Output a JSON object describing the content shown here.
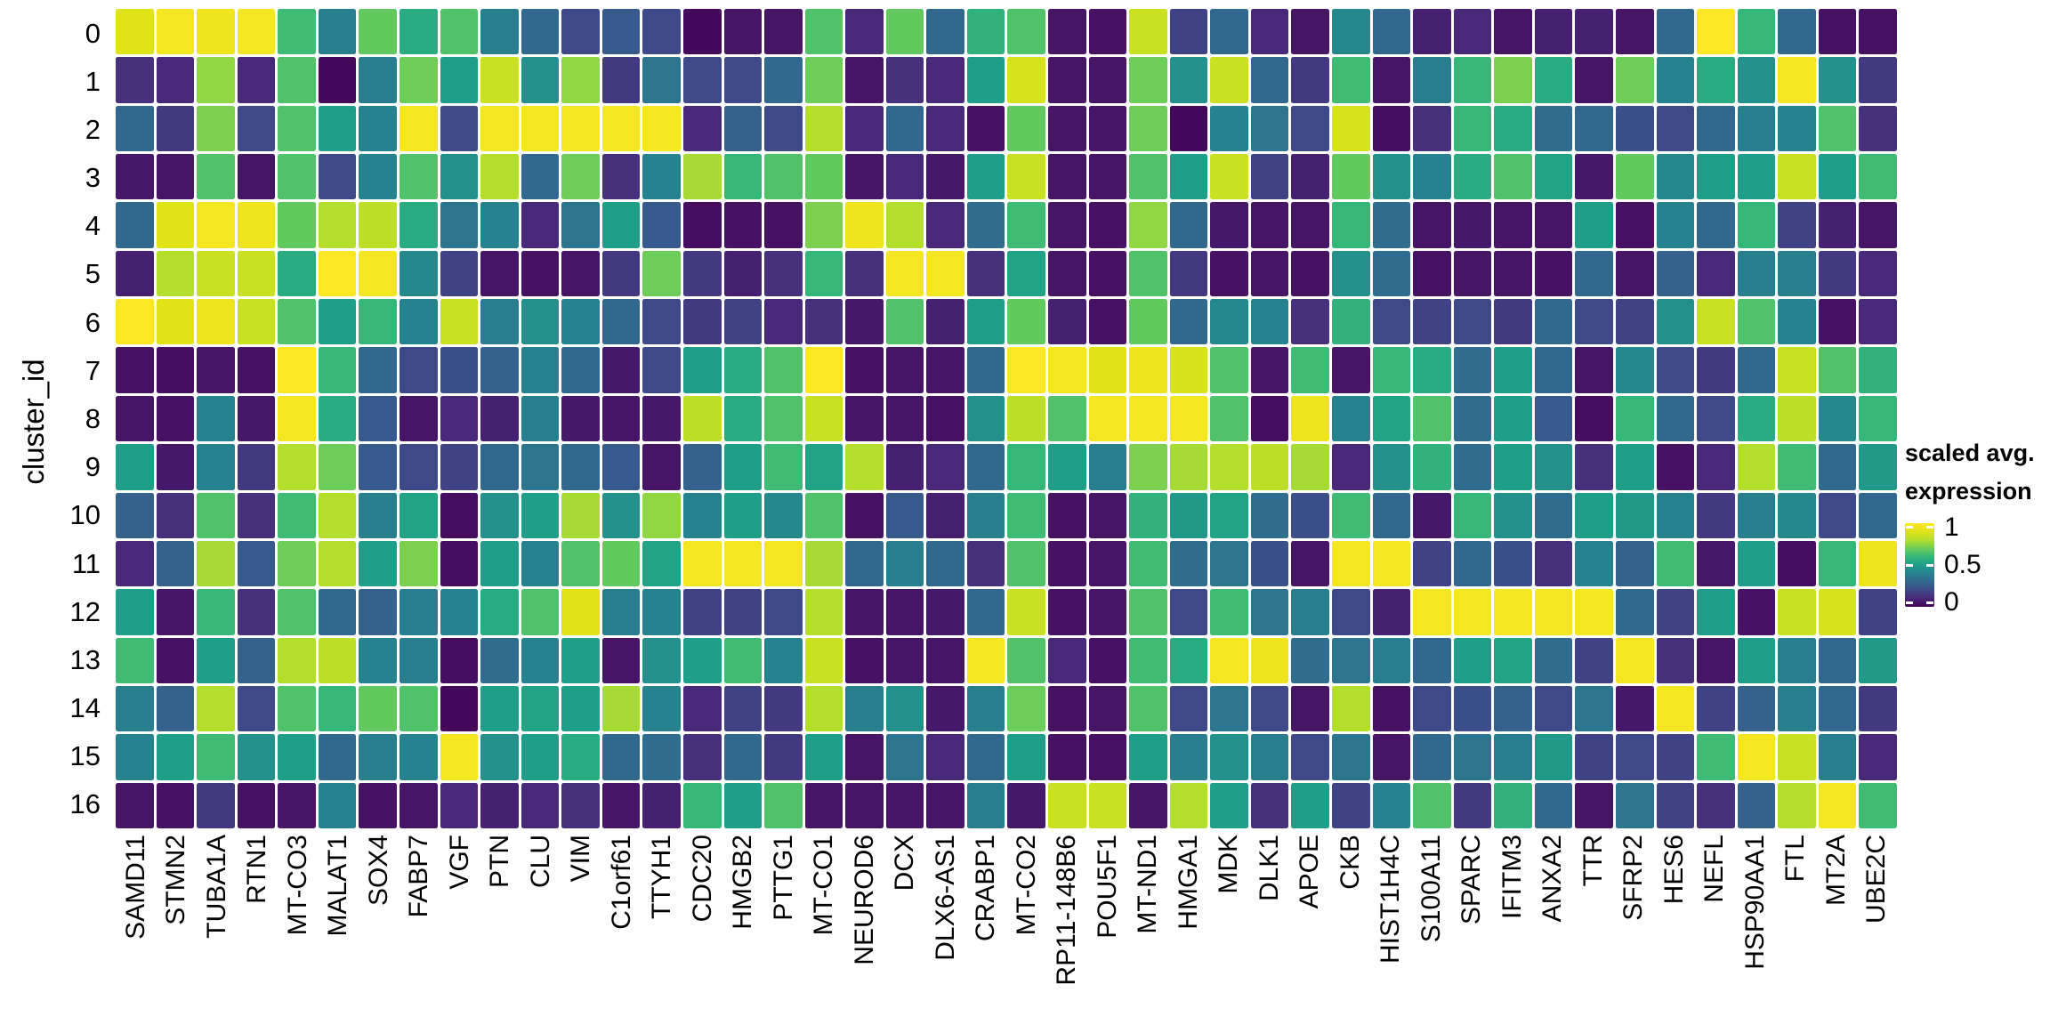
{
  "chart_data": {
    "type": "heatmap",
    "title": "",
    "xlabel": "",
    "ylabel": "cluster_id",
    "colormap": "viridis",
    "grid": "off",
    "legend_position": "right",
    "rows": [
      "0",
      "1",
      "2",
      "3",
      "4",
      "5",
      "6",
      "7",
      "8",
      "9",
      "10",
      "11",
      "12",
      "13",
      "14",
      "15",
      "16"
    ],
    "columns": [
      "SAMD11",
      "STMN2",
      "TUBA1A",
      "RTN1",
      "MT-CO3",
      "MALAT1",
      "SOX4",
      "FABP7",
      "VGF",
      "PTN",
      "CLU",
      "VIM",
      "C1orf61",
      "TTYH1",
      "CDC20",
      "HMGB2",
      "PTTG1",
      "MT-CO1",
      "NEUROD6",
      "DCX",
      "DLX6-AS1",
      "CRABP1",
      "MT-CO2",
      "RP11-148B6",
      "POU5F1",
      "MT-ND1",
      "HMGA1",
      "MDK",
      "DLK1",
      "APOE",
      "CKB",
      "HIST1H4C",
      "S100A11",
      "SPARC",
      "IFITM3",
      "ANXA2",
      "TTR",
      "SFRP2",
      "HES6",
      "NEFL",
      "HSP90AA1",
      "FTL",
      "MT2A",
      "UBE2C"
    ],
    "values": [
      [
        0.9,
        0.97,
        0.95,
        0.97,
        0.62,
        0.38,
        0.68,
        0.55,
        0.65,
        0.38,
        0.3,
        0.2,
        0.25,
        0.2,
        0.02,
        0.05,
        0.05,
        0.65,
        0.1,
        0.68,
        0.3,
        0.58,
        0.65,
        0.05,
        0.04,
        0.85,
        0.18,
        0.3,
        0.1,
        0.05,
        0.42,
        0.3,
        0.08,
        0.1,
        0.05,
        0.08,
        0.08,
        0.05,
        0.3,
        1.0,
        0.6,
        0.3,
        0.04,
        0.04
      ],
      [
        0.12,
        0.1,
        0.75,
        0.1,
        0.65,
        0.02,
        0.38,
        0.7,
        0.5,
        0.85,
        0.45,
        0.75,
        0.15,
        0.35,
        0.2,
        0.2,
        0.3,
        0.7,
        0.05,
        0.12,
        0.1,
        0.5,
        0.88,
        0.05,
        0.05,
        0.7,
        0.45,
        0.85,
        0.3,
        0.15,
        0.62,
        0.05,
        0.38,
        0.6,
        0.72,
        0.55,
        0.05,
        0.7,
        0.4,
        0.55,
        0.45,
        0.97,
        0.45,
        0.15
      ],
      [
        0.3,
        0.15,
        0.72,
        0.2,
        0.65,
        0.5,
        0.4,
        0.97,
        0.2,
        0.97,
        0.97,
        0.97,
        0.97,
        0.97,
        0.1,
        0.28,
        0.2,
        0.8,
        0.1,
        0.3,
        0.1,
        0.04,
        0.68,
        0.05,
        0.05,
        0.7,
        0.02,
        0.4,
        0.35,
        0.2,
        0.88,
        0.03,
        0.12,
        0.6,
        0.55,
        0.32,
        0.3,
        0.22,
        0.2,
        0.3,
        0.38,
        0.4,
        0.65,
        0.12
      ],
      [
        0.06,
        0.05,
        0.65,
        0.05,
        0.65,
        0.2,
        0.4,
        0.65,
        0.45,
        0.8,
        0.3,
        0.7,
        0.12,
        0.4,
        0.78,
        0.6,
        0.65,
        0.68,
        0.05,
        0.1,
        0.06,
        0.5,
        0.85,
        0.05,
        0.05,
        0.65,
        0.5,
        0.85,
        0.18,
        0.08,
        0.68,
        0.45,
        0.4,
        0.55,
        0.65,
        0.52,
        0.06,
        0.68,
        0.42,
        0.5,
        0.5,
        0.85,
        0.5,
        0.62
      ],
      [
        0.3,
        0.9,
        0.97,
        0.95,
        0.68,
        0.8,
        0.82,
        0.55,
        0.35,
        0.4,
        0.1,
        0.35,
        0.5,
        0.25,
        0.03,
        0.04,
        0.04,
        0.72,
        0.95,
        0.8,
        0.1,
        0.32,
        0.62,
        0.05,
        0.04,
        0.75,
        0.3,
        0.06,
        0.05,
        0.05,
        0.6,
        0.32,
        0.05,
        0.06,
        0.05,
        0.05,
        0.5,
        0.04,
        0.4,
        0.3,
        0.6,
        0.18,
        0.08,
        0.05
      ],
      [
        0.08,
        0.8,
        0.85,
        0.85,
        0.55,
        1.0,
        0.97,
        0.42,
        0.18,
        0.05,
        0.04,
        0.05,
        0.15,
        0.7,
        0.15,
        0.08,
        0.12,
        0.6,
        0.12,
        0.97,
        0.97,
        0.12,
        0.52,
        0.05,
        0.04,
        0.65,
        0.15,
        0.04,
        0.05,
        0.04,
        0.45,
        0.32,
        0.04,
        0.05,
        0.05,
        0.04,
        0.3,
        0.05,
        0.28,
        0.1,
        0.38,
        0.38,
        0.15,
        0.1
      ],
      [
        1.0,
        0.9,
        0.95,
        0.85,
        0.65,
        0.5,
        0.6,
        0.4,
        0.85,
        0.38,
        0.45,
        0.4,
        0.3,
        0.2,
        0.15,
        0.18,
        0.1,
        0.12,
        0.06,
        0.65,
        0.08,
        0.5,
        0.68,
        0.08,
        0.04,
        0.68,
        0.3,
        0.42,
        0.4,
        0.12,
        0.58,
        0.2,
        0.18,
        0.2,
        0.15,
        0.3,
        0.2,
        0.18,
        0.45,
        0.85,
        0.65,
        0.4,
        0.04,
        0.1
      ],
      [
        0.04,
        0.03,
        0.05,
        0.04,
        1.0,
        0.6,
        0.3,
        0.2,
        0.22,
        0.28,
        0.4,
        0.3,
        0.06,
        0.2,
        0.5,
        0.55,
        0.65,
        1.0,
        0.04,
        0.05,
        0.05,
        0.3,
        1.0,
        0.97,
        0.9,
        0.95,
        0.88,
        0.65,
        0.05,
        0.62,
        0.05,
        0.6,
        0.55,
        0.32,
        0.5,
        0.3,
        0.05,
        0.42,
        0.2,
        0.15,
        0.3,
        0.85,
        0.65,
        0.58
      ],
      [
        0.05,
        0.04,
        0.4,
        0.06,
        0.97,
        0.55,
        0.25,
        0.05,
        0.1,
        0.08,
        0.38,
        0.06,
        0.05,
        0.06,
        0.82,
        0.55,
        0.65,
        0.85,
        0.05,
        0.05,
        0.04,
        0.45,
        0.82,
        0.65,
        0.97,
        0.97,
        0.97,
        0.65,
        0.03,
        0.95,
        0.4,
        0.52,
        0.65,
        0.32,
        0.5,
        0.25,
        0.03,
        0.6,
        0.3,
        0.2,
        0.55,
        0.82,
        0.42,
        0.6
      ],
      [
        0.5,
        0.06,
        0.4,
        0.15,
        0.8,
        0.7,
        0.25,
        0.2,
        0.18,
        0.3,
        0.35,
        0.3,
        0.25,
        0.05,
        0.28,
        0.5,
        0.62,
        0.52,
        0.8,
        0.08,
        0.1,
        0.3,
        0.6,
        0.5,
        0.38,
        0.72,
        0.78,
        0.8,
        0.82,
        0.78,
        0.1,
        0.45,
        0.58,
        0.32,
        0.5,
        0.45,
        0.12,
        0.5,
        0.04,
        0.1,
        0.8,
        0.62,
        0.3,
        0.48
      ],
      [
        0.28,
        0.12,
        0.65,
        0.12,
        0.62,
        0.8,
        0.38,
        0.52,
        0.03,
        0.45,
        0.5,
        0.78,
        0.45,
        0.75,
        0.4,
        0.5,
        0.42,
        0.65,
        0.04,
        0.25,
        0.08,
        0.38,
        0.62,
        0.04,
        0.05,
        0.58,
        0.48,
        0.52,
        0.32,
        0.22,
        0.62,
        0.3,
        0.06,
        0.6,
        0.45,
        0.32,
        0.5,
        0.48,
        0.4,
        0.15,
        0.38,
        0.42,
        0.2,
        0.3
      ],
      [
        0.1,
        0.28,
        0.78,
        0.25,
        0.7,
        0.8,
        0.5,
        0.72,
        0.03,
        0.5,
        0.4,
        0.65,
        0.68,
        0.52,
        0.97,
        0.97,
        0.97,
        0.78,
        0.3,
        0.38,
        0.3,
        0.12,
        0.65,
        0.04,
        0.05,
        0.62,
        0.32,
        0.35,
        0.22,
        0.05,
        0.97,
        0.97,
        0.18,
        0.3,
        0.22,
        0.12,
        0.4,
        0.28,
        0.62,
        0.06,
        0.5,
        0.03,
        0.6,
        0.95
      ],
      [
        0.5,
        0.05,
        0.6,
        0.12,
        0.65,
        0.3,
        0.28,
        0.38,
        0.4,
        0.55,
        0.65,
        0.9,
        0.38,
        0.4,
        0.18,
        0.18,
        0.2,
        0.8,
        0.05,
        0.05,
        0.06,
        0.3,
        0.85,
        0.04,
        0.05,
        0.65,
        0.2,
        0.62,
        0.35,
        0.38,
        0.2,
        0.08,
        0.97,
        0.97,
        0.97,
        0.97,
        0.97,
        0.3,
        0.18,
        0.5,
        0.04,
        0.85,
        0.88,
        0.18
      ],
      [
        0.62,
        0.04,
        0.5,
        0.28,
        0.8,
        0.82,
        0.4,
        0.38,
        0.03,
        0.32,
        0.4,
        0.5,
        0.05,
        0.45,
        0.5,
        0.62,
        0.4,
        0.85,
        0.04,
        0.05,
        0.05,
        0.97,
        0.65,
        0.1,
        0.04,
        0.62,
        0.55,
        0.97,
        0.95,
        0.32,
        0.35,
        0.38,
        0.3,
        0.5,
        0.52,
        0.32,
        0.18,
        0.97,
        0.12,
        0.05,
        0.5,
        0.38,
        0.3,
        0.48
      ],
      [
        0.38,
        0.28,
        0.8,
        0.2,
        0.65,
        0.6,
        0.68,
        0.65,
        0.02,
        0.5,
        0.52,
        0.5,
        0.78,
        0.4,
        0.1,
        0.18,
        0.15,
        0.8,
        0.38,
        0.45,
        0.06,
        0.38,
        0.7,
        0.04,
        0.05,
        0.65,
        0.2,
        0.35,
        0.2,
        0.05,
        0.8,
        0.04,
        0.2,
        0.22,
        0.28,
        0.2,
        0.35,
        0.06,
        0.97,
        0.18,
        0.28,
        0.38,
        0.3,
        0.15
      ],
      [
        0.4,
        0.5,
        0.62,
        0.45,
        0.5,
        0.3,
        0.38,
        0.4,
        0.97,
        0.45,
        0.5,
        0.55,
        0.3,
        0.32,
        0.12,
        0.3,
        0.15,
        0.5,
        0.05,
        0.35,
        0.1,
        0.3,
        0.5,
        0.04,
        0.04,
        0.5,
        0.38,
        0.45,
        0.38,
        0.2,
        0.35,
        0.05,
        0.3,
        0.35,
        0.38,
        0.48,
        0.18,
        0.2,
        0.18,
        0.62,
        0.97,
        0.85,
        0.38,
        0.1
      ],
      [
        0.05,
        0.04,
        0.15,
        0.04,
        0.05,
        0.4,
        0.04,
        0.05,
        0.1,
        0.08,
        0.1,
        0.12,
        0.05,
        0.08,
        0.6,
        0.5,
        0.65,
        0.05,
        0.05,
        0.05,
        0.05,
        0.38,
        0.06,
        0.85,
        0.85,
        0.05,
        0.8,
        0.5,
        0.12,
        0.5,
        0.18,
        0.4,
        0.65,
        0.15,
        0.58,
        0.3,
        0.05,
        0.35,
        0.18,
        0.12,
        0.28,
        0.8,
        0.97,
        0.62
      ]
    ],
    "legend": {
      "title_line1": "scaled avg.",
      "title_line2": "expression",
      "ticks": [
        "1",
        "0.5",
        "0"
      ],
      "tick_values": [
        1,
        0.5,
        0
      ],
      "tick_positions_pct": [
        5,
        50,
        95
      ]
    },
    "colors": {
      "viridis_stops": [
        [
          0.0,
          68,
          1,
          84
        ],
        [
          0.1,
          72,
          40,
          120
        ],
        [
          0.2,
          62,
          73,
          137
        ],
        [
          0.3,
          49,
          104,
          142
        ],
        [
          0.4,
          38,
          130,
          142
        ],
        [
          0.5,
          31,
          158,
          137
        ],
        [
          0.6,
          53,
          183,
          121
        ],
        [
          0.7,
          109,
          205,
          89
        ],
        [
          0.8,
          180,
          222,
          44
        ],
        [
          0.9,
          223,
          227,
          24
        ],
        [
          1.0,
          253,
          231,
          37
        ]
      ],
      "background": "#ffffff",
      "cell_gap": "#ffffff"
    }
  }
}
